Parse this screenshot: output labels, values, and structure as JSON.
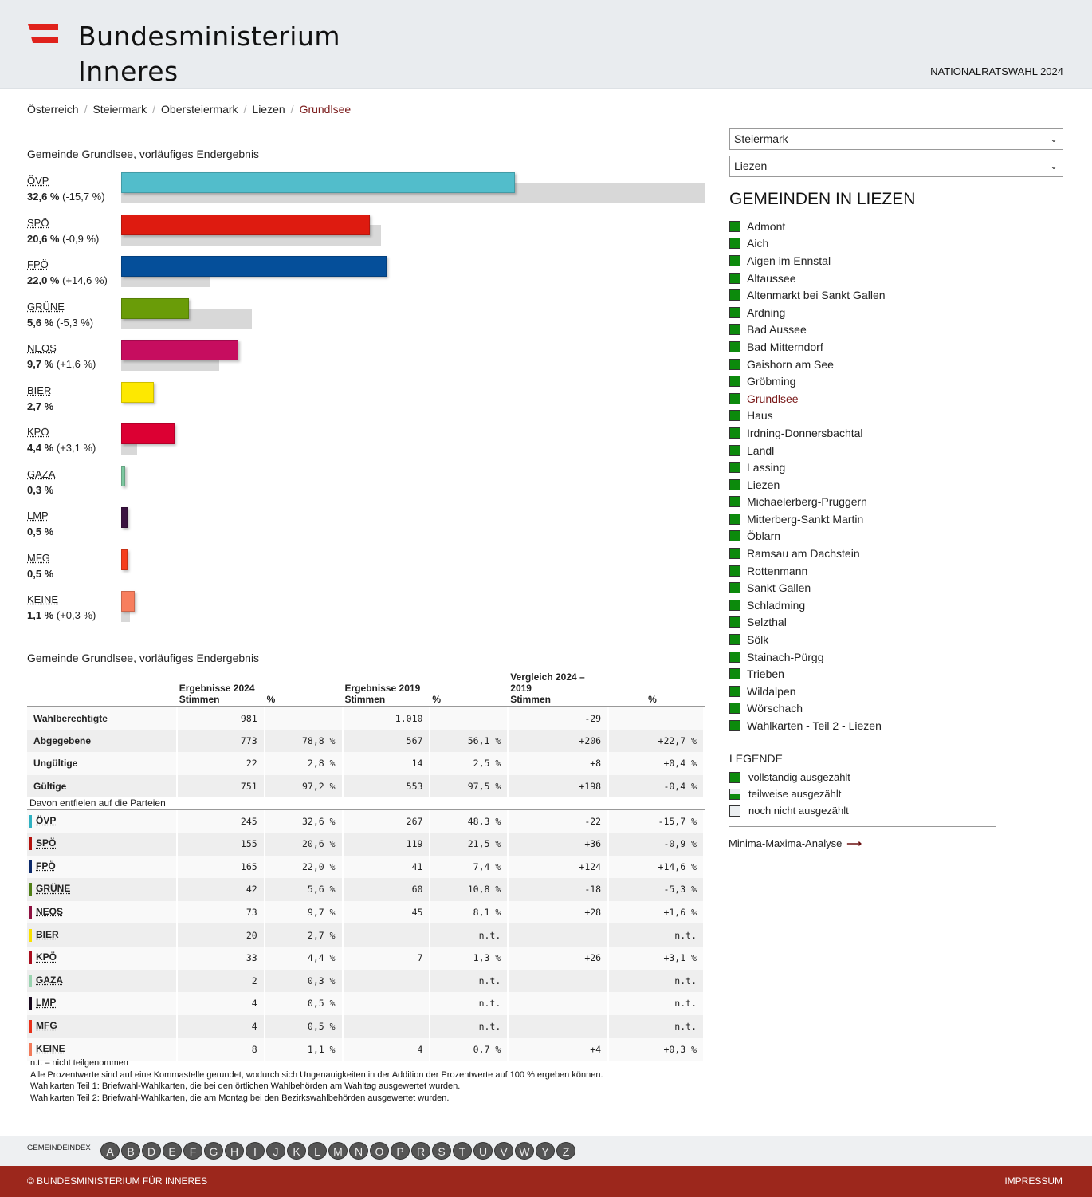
{
  "header": {
    "logo_line1": "Bundesministerium",
    "logo_line2": "Inneres",
    "election_title": "NATIONALRATSWAHL 2024",
    "brand_color": "#e0221c"
  },
  "breadcrumb": [
    "Österreich",
    "Steiermark",
    "Obersteiermark",
    "Liezen",
    "Grundlsee"
  ],
  "chart_data": {
    "type": "bar",
    "title": "Gemeinde Grundlsee, vorläufiges Endergebnis",
    "unit": "%",
    "scale_max": 48.3,
    "categories": [
      "ÖVP",
      "SPÖ",
      "FPÖ",
      "GRÜNE",
      "NEOS",
      "BIER",
      "KPÖ",
      "GAZA",
      "LMP",
      "MFG",
      "KEINE"
    ],
    "series": [
      {
        "name": "2024",
        "values": [
          32.6,
          20.6,
          22.0,
          5.6,
          9.7,
          2.7,
          4.4,
          0.3,
          0.5,
          0.5,
          1.1
        ]
      },
      {
        "name": "2019",
        "values": [
          48.3,
          21.5,
          7.4,
          10.8,
          8.1,
          null,
          1.3,
          null,
          null,
          null,
          0.7
        ]
      }
    ],
    "labels": [
      "32,6 %",
      "20,6 %",
      "22,0 %",
      "5,6 %",
      "9,7 %",
      "2,7 %",
      "4,4 %",
      "0,3 %",
      "0,5 %",
      "0,5 %",
      "1,1 %"
    ],
    "diffs": [
      "(-15,7 %)",
      "(-0,9 %)",
      "(+14,6 %)",
      "(-5,3 %)",
      "(+1,6 %)",
      "",
      "(+3,1 %)",
      "",
      "",
      "",
      "(+0,3 %)"
    ],
    "colors": [
      "#52bdcb",
      "#de1b10",
      "#054f9a",
      "#6a9c08",
      "#c60d5f",
      "#fde801",
      "#dc0033",
      "#7dc8a0",
      "#3a1240",
      "#f53e1c",
      "#f77e5e"
    ]
  },
  "table": {
    "title": "Gemeinde Grundlsee, vorläufiges Endergebnis",
    "headers": {
      "g2024": "Ergebnisse 2024",
      "g2019": "Ergebnisse 2019",
      "gcmp": "Vergleich 2024 – 2019",
      "stimmen": "Stimmen",
      "pct": "%"
    },
    "summary_rows": [
      {
        "label": "Wahlberechtigte",
        "v24": "981",
        "p24": "",
        "v19": "1.010",
        "p19": "",
        "dv": "-29",
        "dp": ""
      },
      {
        "label": "Abgegebene",
        "v24": "773",
        "p24": "78,8 %",
        "v19": "567",
        "p19": "56,1 %",
        "dv": "+206",
        "dp": "+22,7 %"
      },
      {
        "label": "Ungültige",
        "v24": "22",
        "p24": "2,8 %",
        "v19": "14",
        "p19": "2,5 %",
        "dv": "+8",
        "dp": "+0,4 %"
      },
      {
        "label": "Gültige",
        "v24": "751",
        "p24": "97,2 %",
        "v19": "553",
        "p19": "97,5 %",
        "dv": "+198",
        "dp": "-0,4 %"
      }
    ],
    "subheader": "Davon entfielen auf die Parteien",
    "party_rows": [
      {
        "label": "ÖVP",
        "color": "#2fb1c1",
        "v24": "245",
        "p24": "32,6 %",
        "v19": "267",
        "p19": "48,3 %",
        "dv": "-22",
        "dp": "-15,7 %"
      },
      {
        "label": "SPÖ",
        "color": "#b3110d",
        "v24": "155",
        "p24": "20,6 %",
        "v19": "119",
        "p19": "21,5 %",
        "dv": "+36",
        "dp": "-0,9 %"
      },
      {
        "label": "FPÖ",
        "color": "#0c2a6b",
        "v24": "165",
        "p24": "22,0 %",
        "v19": "41",
        "p19": "7,4 %",
        "dv": "+124",
        "dp": "+14,6 %"
      },
      {
        "label": "GRÜNE",
        "color": "#4f7f16",
        "v24": "42",
        "p24": "5,6 %",
        "v19": "60",
        "p19": "10,8 %",
        "dv": "-18",
        "dp": "-5,3 %"
      },
      {
        "label": "NEOS",
        "color": "#8e1040",
        "v24": "73",
        "p24": "9,7 %",
        "v19": "45",
        "p19": "8,1 %",
        "dv": "+28",
        "dp": "+1,6 %"
      },
      {
        "label": "BIER",
        "color": "#f8e000",
        "v24": "20",
        "p24": "2,7 %",
        "v19": "",
        "p19": "n.t.",
        "dv": "",
        "dp": "n.t."
      },
      {
        "label": "KPÖ",
        "color": "#a80d1e",
        "v24": "33",
        "p24": "4,4 %",
        "v19": "7",
        "p19": "1,3 %",
        "dv": "+26",
        "dp": "+3,1 %"
      },
      {
        "label": "GAZA",
        "color": "#9ad3b0",
        "v24": "2",
        "p24": "0,3 %",
        "v19": "",
        "p19": "n.t.",
        "dv": "",
        "dp": "n.t."
      },
      {
        "label": "LMP",
        "color": "#1a0a1f",
        "v24": "4",
        "p24": "0,5 %",
        "v19": "",
        "p19": "n.t.",
        "dv": "",
        "dp": "n.t."
      },
      {
        "label": "MFG",
        "color": "#e8301a",
        "v24": "4",
        "p24": "0,5 %",
        "v19": "",
        "p19": "n.t.",
        "dv": "",
        "dp": "n.t."
      },
      {
        "label": "KEINE",
        "color": "#f17a5a",
        "v24": "8",
        "p24": "1,1 %",
        "v19": "4",
        "p19": "0,7 %",
        "dv": "+4",
        "dp": "+0,3 %"
      }
    ]
  },
  "footnotes": [
    "n.t. – nicht teilgenommen",
    "Alle Prozentwerte sind auf eine Kommastelle gerundet, wodurch sich Ungenauigkeiten in der Addition der Prozentwerte auf 100 % ergeben können.",
    "Wahlkarten Teil 1: Briefwahl-Wahlkarten, die bei den örtlichen Wahlbehörden am Wahltag ausgewertet wurden.",
    "Wahlkarten Teil 2: Briefwahl-Wahlkarten, die am Montag bei den Bezirkswahlbehörden ausgewertet wurden."
  ],
  "sidebar": {
    "select_state": "Steiermark",
    "select_district": "Liezen",
    "title": "GEMEINDEN IN LIEZEN",
    "gemeinden": [
      "Admont",
      "Aich",
      "Aigen im Ennstal",
      "Altaussee",
      "Altenmarkt bei Sankt Gallen",
      "Ardning",
      "Bad Aussee",
      "Bad Mitterndorf",
      "Gaishorn am See",
      "Gröbming",
      "Grundlsee",
      "Haus",
      "Irdning-Donnersbachtal",
      "Landl",
      "Lassing",
      "Liezen",
      "Michaelerberg-Pruggern",
      "Mitterberg-Sankt Martin",
      "Öblarn",
      "Ramsau am Dachstein",
      "Rottenmann",
      "Sankt Gallen",
      "Schladming",
      "Selzthal",
      "Sölk",
      "Stainach-Pürgg",
      "Trieben",
      "Wildalpen",
      "Wörschach",
      "Wahlkarten - Teil 2 - Liezen"
    ],
    "current": "Grundlsee",
    "status_color": "#0c8a0c",
    "legend_title": "LEGENDE",
    "legend": [
      "vollständig ausgezählt",
      "teilweise ausgezählt",
      "noch nicht ausgezählt"
    ],
    "minmax_link": "Minima-Maxima-Analyse",
    "minmax_arrow": "⟶"
  },
  "index": {
    "label": "GEMEINDEINDEX",
    "letters": [
      "A",
      "B",
      "D",
      "E",
      "F",
      "G",
      "H",
      "I",
      "J",
      "K",
      "L",
      "M",
      "N",
      "O",
      "P",
      "R",
      "S",
      "T",
      "U",
      "V",
      "W",
      "Y",
      "Z"
    ]
  },
  "footer": {
    "copyright": "© BUNDESMINISTERIUM FÜR INNERES",
    "impressum": "IMPRESSUM"
  }
}
